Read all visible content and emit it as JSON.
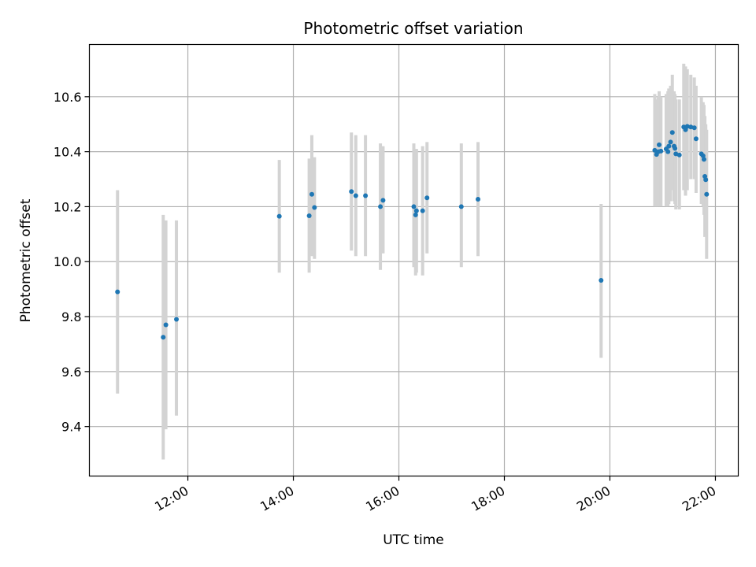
{
  "chart_data": {
    "type": "scatter",
    "title": "Photometric offset variation",
    "xlabel": "UTC time",
    "ylabel": "Photometric offset",
    "grid": true,
    "legend": "none",
    "x_axis_kind": "time",
    "xlim": [
      "10:08",
      "22:26"
    ],
    "ylim": [
      9.22,
      10.79
    ],
    "x_ticks": [
      "12:00",
      "14:00",
      "16:00",
      "18:00",
      "20:00",
      "22:00"
    ],
    "y_ticks": [
      "9.4",
      "9.6",
      "9.8",
      "10.0",
      "10.2",
      "10.4",
      "10.6"
    ],
    "colors": {
      "point": "#1f77b4",
      "errorbar": "#d3d3d3",
      "grid": "#b0b0b0"
    },
    "series": [
      {
        "points": [
          {
            "x": "10:40",
            "y": 9.89,
            "ylow": 9.52,
            "yhigh": 10.26
          },
          {
            "x": "11:32",
            "y": 9.725,
            "ylow": 9.28,
            "yhigh": 10.17
          },
          {
            "x": "11:35",
            "y": 9.77,
            "ylow": 9.39,
            "yhigh": 10.15
          },
          {
            "x": "11:47",
            "y": 9.79,
            "ylow": 9.44,
            "yhigh": 10.15
          },
          {
            "x": "13:44",
            "y": 10.165,
            "ylow": 9.96,
            "yhigh": 10.37
          },
          {
            "x": "14:18",
            "y": 10.167,
            "ylow": 9.96,
            "yhigh": 10.375
          },
          {
            "x": "14:21",
            "y": 10.245,
            "ylow": 10.02,
            "yhigh": 10.46
          },
          {
            "x": "14:24",
            "y": 10.197,
            "ylow": 10.01,
            "yhigh": 10.38
          },
          {
            "x": "15:06",
            "y": 10.255,
            "ylow": 10.04,
            "yhigh": 10.47
          },
          {
            "x": "15:11",
            "y": 10.24,
            "ylow": 10.02,
            "yhigh": 10.46
          },
          {
            "x": "15:22",
            "y": 10.24,
            "ylow": 10.02,
            "yhigh": 10.46
          },
          {
            "x": "15:39",
            "y": 10.2,
            "ylow": 9.97,
            "yhigh": 10.43
          },
          {
            "x": "15:42",
            "y": 10.223,
            "ylow": 10.03,
            "yhigh": 10.42
          },
          {
            "x": "16:17",
            "y": 10.2,
            "ylow": 9.98,
            "yhigh": 10.43
          },
          {
            "x": "16:19",
            "y": 10.17,
            "ylow": 9.95,
            "yhigh": 10.39
          },
          {
            "x": "16:20",
            "y": 10.185,
            "ylow": 9.96,
            "yhigh": 10.41
          },
          {
            "x": "16:27",
            "y": 10.185,
            "ylow": 9.95,
            "yhigh": 10.42
          },
          {
            "x": "16:32",
            "y": 10.232,
            "ylow": 10.03,
            "yhigh": 10.435
          },
          {
            "x": "17:11",
            "y": 10.2,
            "ylow": 9.98,
            "yhigh": 10.43
          },
          {
            "x": "17:30",
            "y": 10.227,
            "ylow": 10.02,
            "yhigh": 10.435
          },
          {
            "x": "19:50",
            "y": 9.932,
            "ylow": 9.65,
            "yhigh": 10.21
          },
          {
            "x": "20:51",
            "y": 10.405,
            "ylow": 10.2,
            "yhigh": 10.61
          },
          {
            "x": "20:53",
            "y": 10.39,
            "ylow": 10.2,
            "yhigh": 10.59
          },
          {
            "x": "20:55",
            "y": 10.4,
            "ylow": 10.2,
            "yhigh": 10.6
          },
          {
            "x": "20:56",
            "y": 10.425,
            "ylow": 10.22,
            "yhigh": 10.62
          },
          {
            "x": "20:58",
            "y": 10.402,
            "ylow": 10.2,
            "yhigh": 10.6
          },
          {
            "x": "21:04",
            "y": 10.41,
            "ylow": 10.2,
            "yhigh": 10.61
          },
          {
            "x": "21:06",
            "y": 10.4,
            "ylow": 10.2,
            "yhigh": 10.62
          },
          {
            "x": "21:07",
            "y": 10.42,
            "ylow": 10.21,
            "yhigh": 10.63
          },
          {
            "x": "21:09",
            "y": 10.435,
            "ylow": 10.22,
            "yhigh": 10.64
          },
          {
            "x": "21:11",
            "y": 10.47,
            "ylow": 10.26,
            "yhigh": 10.68
          },
          {
            "x": "21:13",
            "y": 10.42,
            "ylow": 10.22,
            "yhigh": 10.62
          },
          {
            "x": "21:14",
            "y": 10.412,
            "ylow": 10.21,
            "yhigh": 10.61
          },
          {
            "x": "21:15",
            "y": 10.392,
            "ylow": 10.19,
            "yhigh": 10.59
          },
          {
            "x": "21:19",
            "y": 10.388,
            "ylow": 10.19,
            "yhigh": 10.59
          },
          {
            "x": "21:24",
            "y": 10.49,
            "ylow": 10.26,
            "yhigh": 10.72
          },
          {
            "x": "21:26",
            "y": 10.48,
            "ylow": 10.24,
            "yhigh": 10.71
          },
          {
            "x": "21:28",
            "y": 10.492,
            "ylow": 10.26,
            "yhigh": 10.7
          },
          {
            "x": "21:32",
            "y": 10.49,
            "ylow": 10.3,
            "yhigh": 10.68
          },
          {
            "x": "21:36",
            "y": 10.487,
            "ylow": 10.3,
            "yhigh": 10.67
          },
          {
            "x": "21:38",
            "y": 10.447,
            "ylow": 10.25,
            "yhigh": 10.64
          },
          {
            "x": "21:44",
            "y": 10.392,
            "ylow": 10.21,
            "yhigh": 10.6
          },
          {
            "x": "21:46",
            "y": 10.385,
            "ylow": 10.2,
            "yhigh": 10.58
          },
          {
            "x": "21:47",
            "y": 10.372,
            "ylow": 10.17,
            "yhigh": 10.57
          },
          {
            "x": "21:48",
            "y": 10.31,
            "ylow": 10.09,
            "yhigh": 10.53
          },
          {
            "x": "21:49",
            "y": 10.298,
            "ylow": 10.1,
            "yhigh": 10.5
          },
          {
            "x": "21:50",
            "y": 10.245,
            "ylow": 10.01,
            "yhigh": 10.48
          }
        ]
      }
    ]
  }
}
